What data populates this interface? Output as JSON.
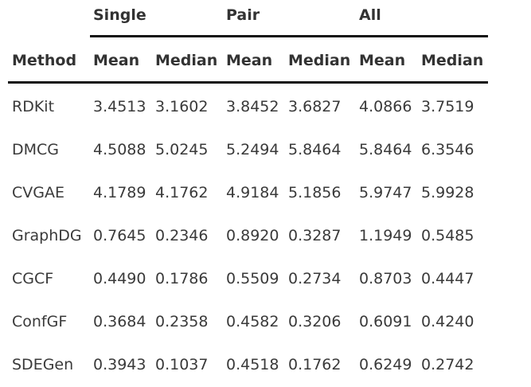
{
  "header": {
    "groups": [
      "Single",
      "Pair",
      "All"
    ],
    "columns": [
      "Method",
      "Mean",
      "Median",
      "Mean",
      "Median",
      "Mean",
      "Median"
    ]
  },
  "rows": [
    {
      "method": "RDKit",
      "values": [
        "3.4513",
        "3.1602",
        "3.8452",
        "3.6827",
        "4.0866",
        "3.7519"
      ]
    },
    {
      "method": "DMCG",
      "values": [
        "4.5088",
        "5.0245",
        "5.2494",
        "5.8464",
        "5.8464",
        "6.3546"
      ]
    },
    {
      "method": "CVGAE",
      "values": [
        "4.1789",
        "4.1762",
        "4.9184",
        "5.1856",
        "5.9747",
        "5.9928"
      ]
    },
    {
      "method": "GraphDG",
      "values": [
        "0.7645",
        "0.2346",
        "0.8920",
        "0.3287",
        "1.1949",
        "0.5485"
      ]
    },
    {
      "method": "CGCF",
      "values": [
        "0.4490",
        "0.1786",
        "0.5509",
        "0.2734",
        "0.8703",
        "0.4447"
      ]
    },
    {
      "method": "ConfGF",
      "values": [
        "0.3684",
        "0.2358",
        "0.4582",
        "0.3206",
        "0.6091",
        "0.4240"
      ]
    },
    {
      "method": "SDEGen",
      "values": [
        "0.3943",
        "0.1037",
        "0.4518",
        "0.1762",
        "0.6249",
        "0.2742"
      ]
    }
  ]
}
